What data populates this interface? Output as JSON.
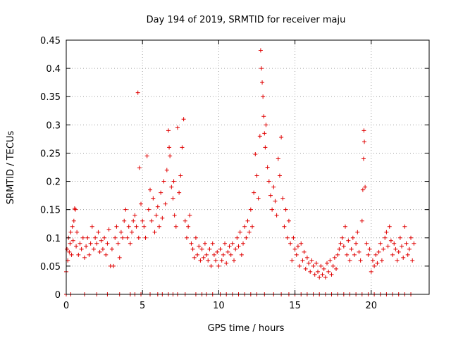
{
  "chart_data": {
    "type": "scatter",
    "title": "Day 194 of 2019, SRMTID for receiver maju",
    "xlabel": "GPS time / hours",
    "ylabel": "SRMTID / TECUs",
    "xlim": [
      0,
      23.8
    ],
    "ylim": [
      0,
      0.45
    ],
    "grid": true,
    "marker": "+",
    "color": "#e00000",
    "xticks": [
      0,
      5,
      10,
      15,
      20
    ],
    "xtick_labels": [
      "0",
      "5",
      "10",
      "15",
      "20"
    ],
    "yticks": [
      0,
      0.05,
      0.1,
      0.15,
      0.2,
      0.25,
      0.3,
      0.35,
      0.4,
      0.45
    ],
    "ytick_labels": [
      "0",
      "0.05",
      "0.1",
      "0.15",
      "0.2",
      "0.25",
      "0.3",
      "0.35",
      "0.4",
      "0.45"
    ],
    "series": [
      {
        "name": "SRMTID",
        "points": [
          [
            0.0,
            0.04
          ],
          [
            0.05,
            0.08
          ],
          [
            0.1,
            0.06
          ],
          [
            0.15,
            0.1
          ],
          [
            0.2,
            0.075
          ],
          [
            0.25,
            0.09
          ],
          [
            0.3,
            0.11
          ],
          [
            0.35,
            0.07
          ],
          [
            0.4,
            0.12
          ],
          [
            0.45,
            0.095
          ],
          [
            0.5,
            0.13
          ],
          [
            0.55,
            0.152
          ],
          [
            0.6,
            0.15
          ],
          [
            0.65,
            0.085
          ],
          [
            0.7,
            0.11
          ],
          [
            0.8,
            0.07
          ],
          [
            0.9,
            0.09
          ],
          [
            1.0,
            0.08
          ],
          [
            1.1,
            0.1
          ],
          [
            1.2,
            0.065
          ],
          [
            1.3,
            0.085
          ],
          [
            1.4,
            0.1
          ],
          [
            1.5,
            0.07
          ],
          [
            1.6,
            0.09
          ],
          [
            1.7,
            0.12
          ],
          [
            1.8,
            0.08
          ],
          [
            1.9,
            0.1
          ],
          [
            2.0,
            0.09
          ],
          [
            2.1,
            0.11
          ],
          [
            2.2,
            0.075
          ],
          [
            2.3,
            0.095
          ],
          [
            2.4,
            0.08
          ],
          [
            2.5,
            0.1
          ],
          [
            2.6,
            0.07
          ],
          [
            2.7,
            0.09
          ],
          [
            2.8,
            0.115
          ],
          [
            2.9,
            0.05
          ],
          [
            3.0,
            0.08
          ],
          [
            3.1,
            0.05
          ],
          [
            3.2,
            0.1
          ],
          [
            3.3,
            0.12
          ],
          [
            3.4,
            0.09
          ],
          [
            3.5,
            0.065
          ],
          [
            3.6,
            0.11
          ],
          [
            3.7,
            0.1
          ],
          [
            3.8,
            0.13
          ],
          [
            3.9,
            0.15
          ],
          [
            4.0,
            0.1
          ],
          [
            4.1,
            0.12
          ],
          [
            4.2,
            0.09
          ],
          [
            4.3,
            0.11
          ],
          [
            4.4,
            0.13
          ],
          [
            4.5,
            0.14
          ],
          [
            4.6,
            0.12
          ],
          [
            4.7,
            0.357
          ],
          [
            4.75,
            0.1
          ],
          [
            4.8,
            0.224
          ],
          [
            4.9,
            0.16
          ],
          [
            5.0,
            0.13
          ],
          [
            5.1,
            0.12
          ],
          [
            5.2,
            0.1
          ],
          [
            5.3,
            0.245
          ],
          [
            5.4,
            0.15
          ],
          [
            5.5,
            0.185
          ],
          [
            5.6,
            0.13
          ],
          [
            5.7,
            0.17
          ],
          [
            5.8,
            0.11
          ],
          [
            5.9,
            0.14
          ],
          [
            6.0,
            0.155
          ],
          [
            6.1,
            0.12
          ],
          [
            6.2,
            0.18
          ],
          [
            6.3,
            0.135
          ],
          [
            6.4,
            0.2
          ],
          [
            6.5,
            0.16
          ],
          [
            6.6,
            0.22
          ],
          [
            6.7,
            0.29
          ],
          [
            6.75,
            0.26
          ],
          [
            6.8,
            0.245
          ],
          [
            6.9,
            0.19
          ],
          [
            7.0,
            0.17
          ],
          [
            7.05,
            0.2
          ],
          [
            7.1,
            0.14
          ],
          [
            7.2,
            0.12
          ],
          [
            7.3,
            0.295
          ],
          [
            7.4,
            0.18
          ],
          [
            7.5,
            0.21
          ],
          [
            7.6,
            0.26
          ],
          [
            7.7,
            0.31
          ],
          [
            7.8,
            0.13
          ],
          [
            7.9,
            0.1
          ],
          [
            8.0,
            0.12
          ],
          [
            8.1,
            0.14
          ],
          [
            8.2,
            0.09
          ],
          [
            8.3,
            0.08
          ],
          [
            8.4,
            0.065
          ],
          [
            8.5,
            0.1
          ],
          [
            8.6,
            0.07
          ],
          [
            8.7,
            0.085
          ],
          [
            8.8,
            0.06
          ],
          [
            8.9,
            0.08
          ],
          [
            9.0,
            0.065
          ],
          [
            9.1,
            0.09
          ],
          [
            9.2,
            0.07
          ],
          [
            9.3,
            0.06
          ],
          [
            9.4,
            0.08
          ],
          [
            9.5,
            0.05
          ],
          [
            9.6,
            0.09
          ],
          [
            9.7,
            0.07
          ],
          [
            9.8,
            0.06
          ],
          [
            9.9,
            0.075
          ],
          [
            10.0,
            0.05
          ],
          [
            10.1,
            0.08
          ],
          [
            10.2,
            0.06
          ],
          [
            10.3,
            0.07
          ],
          [
            10.4,
            0.09
          ],
          [
            10.5,
            0.055
          ],
          [
            10.6,
            0.075
          ],
          [
            10.7,
            0.085
          ],
          [
            10.8,
            0.07
          ],
          [
            10.9,
            0.09
          ],
          [
            11.0,
            0.06
          ],
          [
            11.1,
            0.08
          ],
          [
            11.2,
            0.1
          ],
          [
            11.3,
            0.085
          ],
          [
            11.4,
            0.11
          ],
          [
            11.5,
            0.07
          ],
          [
            11.6,
            0.09
          ],
          [
            11.7,
            0.12
          ],
          [
            11.8,
            0.1
          ],
          [
            11.9,
            0.13
          ],
          [
            12.0,
            0.11
          ],
          [
            12.1,
            0.15
          ],
          [
            12.2,
            0.12
          ],
          [
            12.3,
            0.18
          ],
          [
            12.4,
            0.248
          ],
          [
            12.5,
            0.21
          ],
          [
            12.6,
            0.17
          ],
          [
            12.7,
            0.28
          ],
          [
            12.75,
            0.432
          ],
          [
            12.8,
            0.4
          ],
          [
            12.85,
            0.375
          ],
          [
            12.9,
            0.35
          ],
          [
            12.95,
            0.315
          ],
          [
            13.0,
            0.285
          ],
          [
            13.05,
            0.26
          ],
          [
            13.1,
            0.3
          ],
          [
            13.2,
            0.225
          ],
          [
            13.3,
            0.2
          ],
          [
            13.4,
            0.175
          ],
          [
            13.5,
            0.15
          ],
          [
            13.6,
            0.19
          ],
          [
            13.7,
            0.165
          ],
          [
            13.8,
            0.14
          ],
          [
            13.9,
            0.24
          ],
          [
            14.0,
            0.21
          ],
          [
            14.1,
            0.278
          ],
          [
            14.2,
            0.17
          ],
          [
            14.3,
            0.12
          ],
          [
            14.4,
            0.15
          ],
          [
            14.5,
            0.1
          ],
          [
            14.6,
            0.13
          ],
          [
            14.7,
            0.09
          ],
          [
            14.8,
            0.06
          ],
          [
            14.9,
            0.1
          ],
          [
            15.0,
            0.08
          ],
          [
            15.1,
            0.07
          ],
          [
            15.2,
            0.085
          ],
          [
            15.3,
            0.05
          ],
          [
            15.4,
            0.09
          ],
          [
            15.5,
            0.06
          ],
          [
            15.6,
            0.075
          ],
          [
            15.7,
            0.045
          ],
          [
            15.8,
            0.065
          ],
          [
            15.9,
            0.055
          ],
          [
            16.0,
            0.04
          ],
          [
            16.1,
            0.06
          ],
          [
            16.2,
            0.05
          ],
          [
            16.3,
            0.035
          ],
          [
            16.4,
            0.055
          ],
          [
            16.5,
            0.04
          ],
          [
            16.6,
            0.03
          ],
          [
            16.7,
            0.05
          ],
          [
            16.8,
            0.035
          ],
          [
            16.9,
            0.045
          ],
          [
            17.0,
            0.03
          ],
          [
            17.1,
            0.055
          ],
          [
            17.2,
            0.04
          ],
          [
            17.3,
            0.06
          ],
          [
            17.4,
            0.035
          ],
          [
            17.5,
            0.05
          ],
          [
            17.6,
            0.065
          ],
          [
            17.7,
            0.045
          ],
          [
            17.8,
            0.07
          ],
          [
            17.9,
            0.08
          ],
          [
            18.0,
            0.09
          ],
          [
            18.1,
            0.1
          ],
          [
            18.2,
            0.085
          ],
          [
            18.3,
            0.12
          ],
          [
            18.4,
            0.07
          ],
          [
            18.5,
            0.095
          ],
          [
            18.6,
            0.06
          ],
          [
            18.7,
            0.08
          ],
          [
            18.8,
            0.1
          ],
          [
            18.9,
            0.07
          ],
          [
            19.0,
            0.09
          ],
          [
            19.1,
            0.11
          ],
          [
            19.2,
            0.075
          ],
          [
            19.3,
            0.06
          ],
          [
            19.4,
            0.13
          ],
          [
            19.45,
            0.185
          ],
          [
            19.5,
            0.24
          ],
          [
            19.52,
            0.29
          ],
          [
            19.55,
            0.27
          ],
          [
            19.6,
            0.19
          ],
          [
            19.7,
            0.09
          ],
          [
            19.8,
            0.07
          ],
          [
            19.9,
            0.08
          ],
          [
            20.0,
            0.04
          ],
          [
            20.1,
            0.06
          ],
          [
            20.2,
            0.05
          ],
          [
            20.3,
            0.07
          ],
          [
            20.4,
            0.055
          ],
          [
            20.5,
            0.075
          ],
          [
            20.6,
            0.09
          ],
          [
            20.7,
            0.06
          ],
          [
            20.8,
            0.08
          ],
          [
            20.9,
            0.1
          ],
          [
            21.0,
            0.11
          ],
          [
            21.1,
            0.085
          ],
          [
            21.2,
            0.12
          ],
          [
            21.3,
            0.095
          ],
          [
            21.4,
            0.07
          ],
          [
            21.5,
            0.09
          ],
          [
            21.6,
            0.08
          ],
          [
            21.7,
            0.06
          ],
          [
            21.8,
            0.075
          ],
          [
            21.9,
            0.1
          ],
          [
            22.0,
            0.085
          ],
          [
            22.1,
            0.065
          ],
          [
            22.2,
            0.12
          ],
          [
            22.3,
            0.09
          ],
          [
            22.4,
            0.07
          ],
          [
            22.5,
            0.08
          ],
          [
            22.6,
            0.1
          ],
          [
            22.7,
            0.06
          ],
          [
            22.8,
            0.09
          ],
          [
            0.0,
            0.0
          ],
          [
            0.3,
            0.0
          ],
          [
            1.2,
            0.0
          ],
          [
            2.0,
            0.0
          ],
          [
            2.7,
            0.0
          ],
          [
            3.5,
            0.0
          ],
          [
            4.2,
            0.0
          ],
          [
            4.5,
            0.0
          ],
          [
            4.9,
            0.0
          ],
          [
            5.5,
            0.0
          ],
          [
            6.0,
            0.0
          ],
          [
            6.3,
            0.0
          ],
          [
            6.7,
            0.0
          ],
          [
            7.0,
            0.0
          ],
          [
            7.3,
            0.0
          ],
          [
            7.8,
            0.0
          ],
          [
            8.5,
            0.0
          ],
          [
            8.9,
            0.0
          ],
          [
            9.2,
            0.0
          ],
          [
            9.6,
            0.0
          ],
          [
            10.1,
            0.0
          ],
          [
            10.5,
            0.0
          ],
          [
            10.9,
            0.0
          ],
          [
            11.3,
            0.0
          ],
          [
            11.7,
            0.0
          ],
          [
            12.1,
            0.0
          ],
          [
            12.5,
            0.0
          ],
          [
            13.0,
            0.0
          ],
          [
            13.6,
            0.0
          ],
          [
            14.1,
            0.0
          ],
          [
            14.6,
            0.0
          ],
          [
            15.0,
            0.0
          ],
          [
            15.4,
            0.0
          ],
          [
            15.8,
            0.0
          ],
          [
            16.2,
            0.0
          ],
          [
            16.6,
            0.0
          ],
          [
            17.0,
            0.0
          ],
          [
            17.4,
            0.0
          ],
          [
            17.8,
            0.0
          ],
          [
            18.2,
            0.0
          ],
          [
            18.6,
            0.0
          ],
          [
            19.0,
            0.0
          ],
          [
            19.4,
            0.0
          ],
          [
            19.8,
            0.0
          ],
          [
            20.2,
            0.0
          ],
          [
            20.6,
            0.0
          ],
          [
            21.0,
            0.0
          ],
          [
            21.4,
            0.0
          ],
          [
            21.8,
            0.0
          ],
          [
            22.2,
            0.0
          ],
          [
            22.6,
            0.0
          ]
        ]
      }
    ]
  }
}
